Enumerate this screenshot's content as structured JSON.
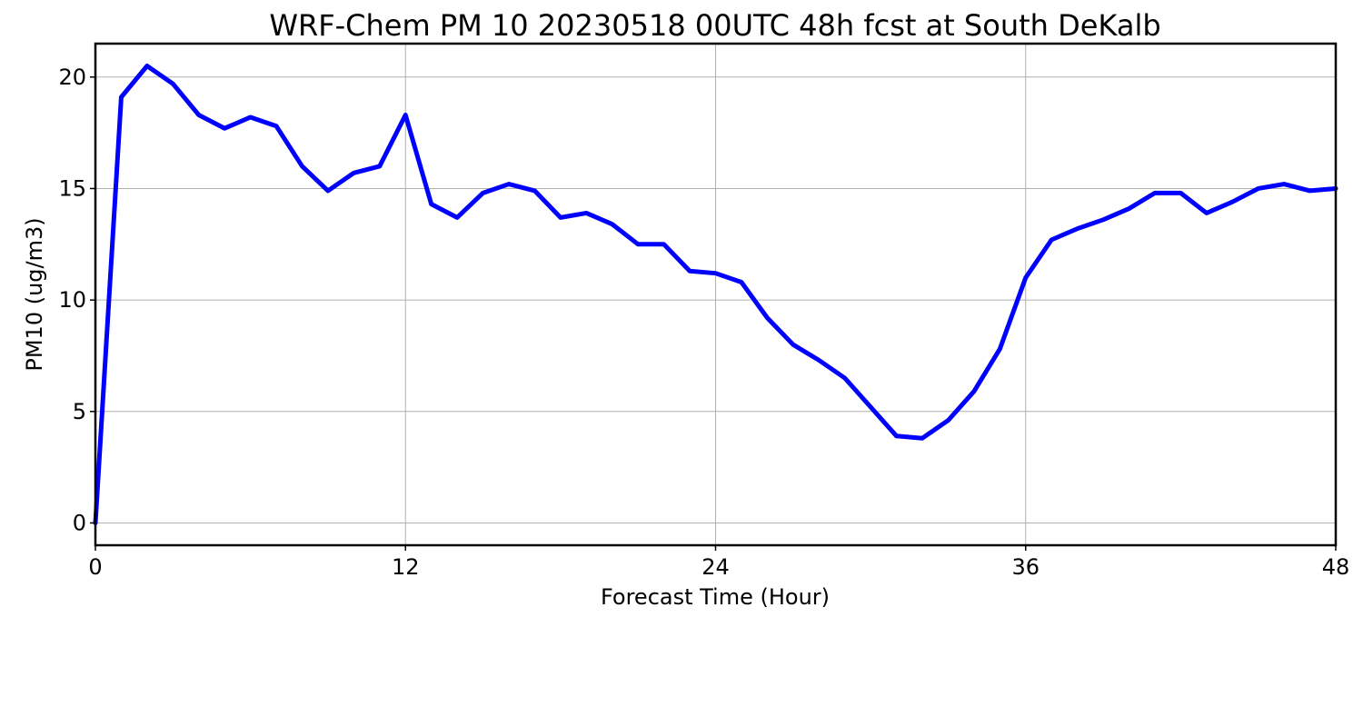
{
  "chart_data": {
    "type": "line",
    "title": "WRF-Chem PM 10  20230518 00UTC 48h fcst at South DeKalb",
    "xlabel": "Forecast Time (Hour)",
    "ylabel": "PM10  (ug/m3)",
    "xlim": [
      0,
      48
    ],
    "ylim": [
      -1,
      21.5
    ],
    "xticks": [
      0,
      12,
      24,
      36,
      48
    ],
    "yticks": [
      0,
      5,
      10,
      15,
      20
    ],
    "grid": true,
    "series": [
      {
        "color": "#0000ff",
        "x": [
          0,
          1,
          2,
          3,
          4,
          5,
          6,
          7,
          8,
          9,
          10,
          11,
          12,
          13,
          14,
          15,
          16,
          17,
          18,
          19,
          20,
          21,
          22,
          23,
          24,
          25,
          26,
          27,
          28,
          29,
          30,
          31,
          32,
          33,
          34,
          35,
          36,
          37,
          38,
          39,
          40,
          41,
          42,
          43,
          44,
          45,
          46,
          47,
          48
        ],
        "values": [
          0,
          19.1,
          20.5,
          19.7,
          18.3,
          17.7,
          18.2,
          17.8,
          16.0,
          14.9,
          15.7,
          16.0,
          18.3,
          14.3,
          13.7,
          14.8,
          15.2,
          14.9,
          13.7,
          13.9,
          13.4,
          12.5,
          12.5,
          11.3,
          11.2,
          10.8,
          9.2,
          8.0,
          7.3,
          6.5,
          5.2,
          3.9,
          3.8,
          4.6,
          5.9,
          7.8,
          11.0,
          12.7,
          13.2,
          13.6,
          14.1,
          14.8,
          14.8,
          13.9,
          14.4,
          15.0,
          15.2,
          14.9,
          15.0
        ]
      }
    ]
  }
}
